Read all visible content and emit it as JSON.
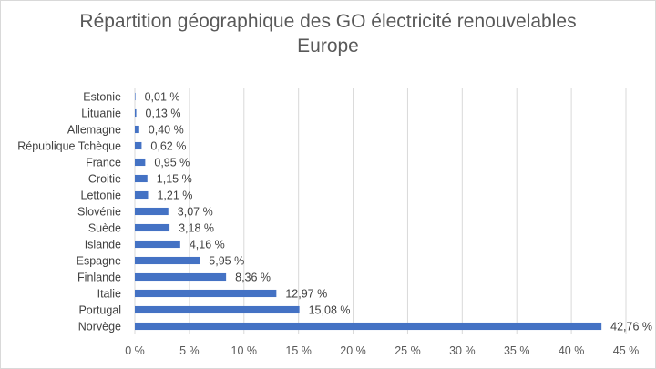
{
  "chart_data": {
    "type": "bar",
    "orientation": "horizontal",
    "title": "Répartition géographique des GO électricité renouvelables",
    "subtitle": "Europe",
    "categories": [
      "Estonie",
      "Lituanie",
      "Allemagne",
      "République Tchèque",
      "France",
      "Croitie",
      "Lettonie",
      "Slovénie",
      "Suède",
      "Islande",
      "Espagne",
      "Finlande",
      "Italie",
      "Portugal",
      "Norvège"
    ],
    "values": [
      0.01,
      0.13,
      0.4,
      0.62,
      0.95,
      1.15,
      1.21,
      3.07,
      3.18,
      4.16,
      5.95,
      8.36,
      12.97,
      15.08,
      42.76
    ],
    "value_labels": [
      "0,01 %",
      "0,13 %",
      "0,40 %",
      "0,62 %",
      "0,95 %",
      "1,15 %",
      "1,21 %",
      "3,07 %",
      "3,18 %",
      "4,16 %",
      "5,95 %",
      "8,36 %",
      "12,97 %",
      "15,08 %",
      "42,76 %"
    ],
    "x_ticks": [
      "0 %",
      "5 %",
      "10 %",
      "15 %",
      "20 %",
      "25 %",
      "30 %",
      "35 %",
      "40 %",
      "45 %"
    ],
    "xlim": [
      0,
      45
    ],
    "xlabel": "",
    "ylabel": "",
    "grid": "vertical",
    "legend": "none",
    "bar_color": "#4472c4"
  }
}
